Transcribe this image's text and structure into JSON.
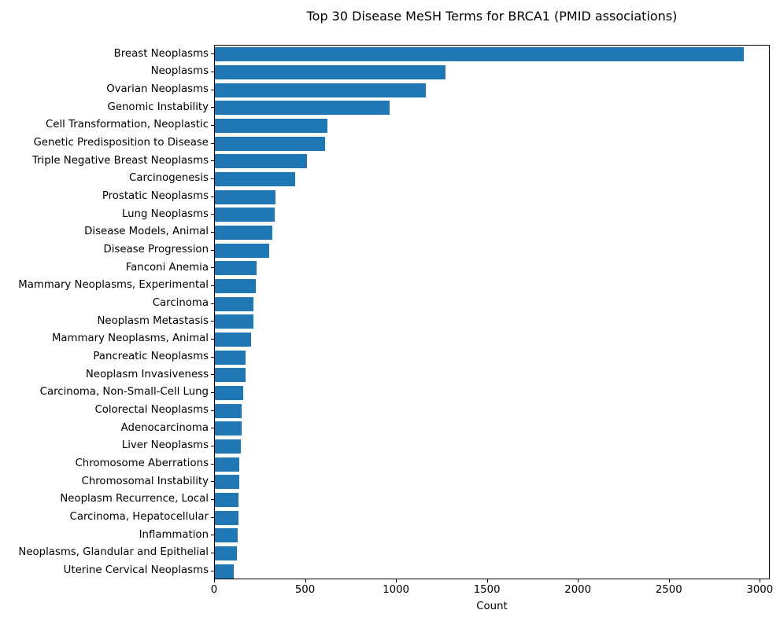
{
  "title": "Top 30 Disease MeSH Terms for BRCA1 (PMID associations)",
  "chart_data": {
    "type": "bar",
    "orientation": "horizontal",
    "title": "Top 30 Disease MeSH Terms for BRCA1 (PMID associations)",
    "xlabel": "Count",
    "ylabel": "",
    "categories": [
      "Breast Neoplasms",
      "Neoplasms",
      "Ovarian Neoplasms",
      "Genomic Instability",
      "Cell Transformation, Neoplastic",
      "Genetic Predisposition to Disease",
      "Triple Negative Breast Neoplasms",
      "Carcinogenesis",
      "Prostatic Neoplasms",
      "Lung Neoplasms",
      "Disease Models, Animal",
      "Disease Progression",
      "Fanconi Anemia",
      "Mammary Neoplasms, Experimental",
      "Carcinoma",
      "Neoplasm Metastasis",
      "Mammary Neoplasms, Animal",
      "Pancreatic Neoplasms",
      "Neoplasm Invasiveness",
      "Carcinoma, Non-Small-Cell Lung",
      "Colorectal Neoplasms",
      "Adenocarcinoma",
      "Liver Neoplasms",
      "Chromosome Aberrations",
      "Chromosomal Instability",
      "Neoplasm Recurrence, Local",
      "Carcinoma, Hepatocellular",
      "Inflammation",
      "Neoplasms, Glandular and Epithelial",
      "Uterine Cervical Neoplasms"
    ],
    "values": [
      2910,
      1270,
      1160,
      960,
      620,
      605,
      505,
      440,
      332,
      330,
      318,
      300,
      229,
      224,
      214,
      210,
      201,
      170,
      170,
      155,
      149,
      148,
      141,
      136,
      135,
      131,
      130,
      126,
      122,
      102
    ],
    "xticks": [
      0,
      500,
      1000,
      1500,
      2000,
      2500,
      3000
    ],
    "xlim": [
      0,
      3055
    ],
    "grid": false,
    "legend": null,
    "bar_color": "#1f77b4",
    "bar_fraction": 0.8
  }
}
